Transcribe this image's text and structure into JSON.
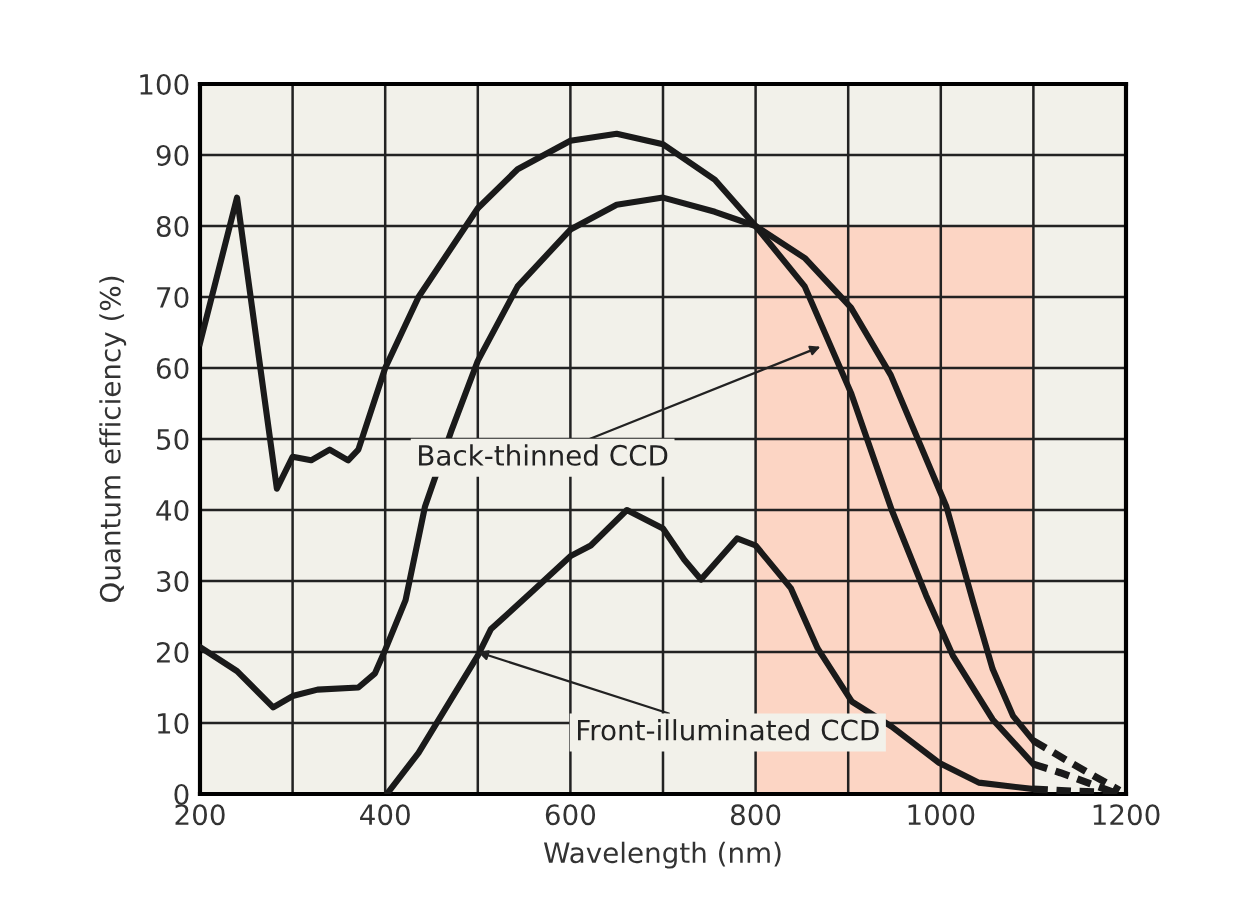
{
  "chart_data": {
    "type": "line",
    "xlabel": "Wavelength (nm)",
    "ylabel": "Quantum efficiency (%)",
    "xlim": [
      200,
      1200
    ],
    "ylim": [
      0,
      100
    ],
    "xticks": [
      200,
      {
        "value": 300,
        "label": null
      },
      400,
      {
        "value": 500,
        "label": null
      },
      600,
      {
        "value": 700,
        "label": null
      },
      800,
      {
        "value": 900,
        "label": null
      },
      1000,
      {
        "value": 1100,
        "label": null
      },
      1200
    ],
    "yticks": [
      0,
      10,
      20,
      30,
      40,
      50,
      60,
      70,
      80,
      90,
      100
    ],
    "grid": true,
    "line_style": "solid",
    "marker": "none",
    "series": [
      {
        "color": "#1a1a1a",
        "x": [
          200,
          240,
          283,
          300,
          320,
          340,
          360,
          371,
          400,
          436,
          500,
          543,
          600,
          650,
          700,
          756,
          800,
          853,
          903,
          947,
          984,
          1013,
          1056,
          1100
        ],
        "values": [
          63.5,
          84,
          43,
          47.5,
          47,
          48.5,
          47,
          48.5,
          60,
          70,
          82.5,
          88,
          92,
          93,
          91.5,
          86.5,
          80,
          71.5,
          56.5,
          40,
          28,
          19.5,
          10.5,
          4.2
        ]
      },
      {
        "color": "#1a1a1a",
        "line_style": "dashed",
        "x": [
          1100,
          1129,
          1187
        ],
        "values": [
          4.2,
          3,
          0.2
        ]
      },
      {
        "color": "#1a1a1a",
        "x": [
          200,
          240,
          279,
          300,
          327,
          371,
          389,
          400,
          422,
          443,
          471,
          500,
          543,
          600,
          650,
          700,
          756,
          800,
          853,
          903,
          946,
          1006,
          1035,
          1056,
          1078,
          1100
        ],
        "values": [
          20.7,
          17.3,
          12.2,
          13.8,
          14.7,
          15,
          17,
          20.3,
          27.3,
          40.5,
          51,
          61,
          71.5,
          79.5,
          83,
          84,
          82,
          80,
          75.5,
          68.5,
          59,
          40.5,
          27,
          17.6,
          11,
          7.5
        ]
      },
      {
        "color": "#1a1a1a",
        "line_style": "dashed",
        "x": [
          1100,
          1143,
          1193
        ],
        "values": [
          7.5,
          4.2,
          0.5
        ]
      },
      {
        "color": "#1a1a1a",
        "x": [
          403,
          436,
          471,
          500,
          514,
          557,
          600,
          622,
          661,
          700,
          723,
          741,
          780,
          800,
          838,
          867,
          904,
          947,
          998,
          1041,
          1100
        ],
        "values": [
          0.2,
          5.8,
          13.3,
          19.5,
          23.2,
          28.3,
          33.5,
          35,
          40,
          37.4,
          33,
          30.2,
          36,
          35,
          29,
          20.5,
          13,
          9.5,
          4.4,
          1.6,
          0.7
        ]
      },
      {
        "color": "#1a1a1a",
        "line_style": "dashed",
        "x": [
          1100,
          1143,
          1193
        ],
        "values": [
          0.7,
          0.4,
          0.2
        ]
      }
    ],
    "bands": [
      {
        "axis": "x",
        "from": 800,
        "to": 1100,
        "color": "#fcd5c4",
        "label": null
      }
    ],
    "annotations": [
      {
        "text": "Back-thinned CCD",
        "x": 870,
        "y": 63
      },
      {
        "text": "Front-illuminated CCD",
        "x": 500,
        "y": 20
      }
    ]
  }
}
